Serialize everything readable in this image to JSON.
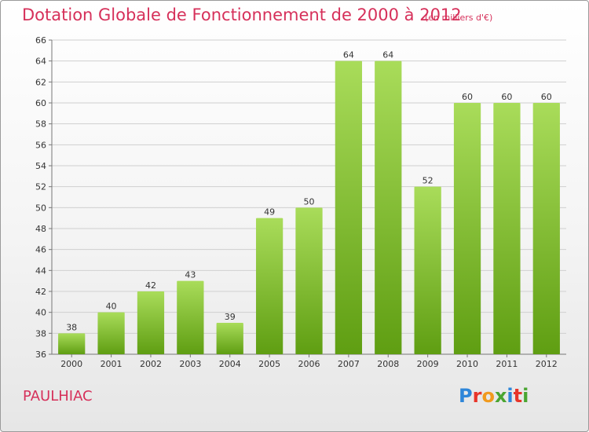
{
  "header": {
    "title": "Dotation Globale de Fonctionnement de 2000 à 2012",
    "subtitle": "(en milliers d'€)"
  },
  "footer": {
    "commune": "PAULHIAC",
    "logo_text": "Proxiti",
    "logo_colors": [
      "#2e86d9",
      "#e8352a",
      "#f19a1d",
      "#4aa531",
      "#2e86d9",
      "#e8352a",
      "#4aa531"
    ]
  },
  "colors": {
    "accent": "#d6305a",
    "bar_light": "#a9dc5a",
    "bar_dark": "#5f9e12",
    "grid": "#cfcfcf"
  },
  "chart_data": {
    "type": "bar",
    "title": "Dotation Globale de Fonctionnement de 2000 à 2012",
    "subtitle": "(en milliers d'€)",
    "categories": [
      "2000",
      "2001",
      "2002",
      "2003",
      "2004",
      "2005",
      "2006",
      "2007",
      "2008",
      "2009",
      "2010",
      "2011",
      "2012"
    ],
    "values": [
      38,
      40,
      42,
      43,
      39,
      49,
      50,
      64,
      64,
      52,
      60,
      60,
      60
    ],
    "ylim": [
      36,
      66
    ],
    "yticks": [
      36,
      38,
      40,
      42,
      44,
      46,
      48,
      50,
      52,
      54,
      56,
      58,
      60,
      62,
      64,
      66
    ],
    "grid": true,
    "xlabel": "",
    "ylabel": ""
  }
}
